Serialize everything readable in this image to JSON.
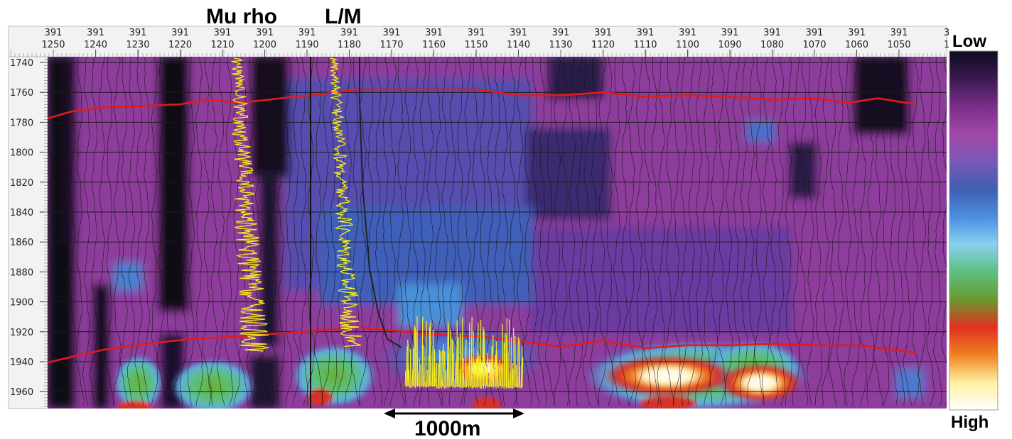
{
  "chart_data": {
    "type": "heatmap",
    "title": "",
    "top_axis": {
      "line1": "391",
      "ticks": [
        "1250",
        "1240",
        "1230",
        "1220",
        "1210",
        "1200",
        "1190",
        "1180",
        "1170",
        "1160",
        "1150",
        "1140",
        "1130",
        "1120",
        "1110",
        "1100",
        "1090",
        "1080",
        "1070",
        "1060",
        "1050"
      ],
      "edge_tick": "1"
    },
    "left_axis": {
      "ticks": [
        "1740",
        "1760",
        "1780",
        "1800",
        "1820",
        "1840",
        "1860",
        "1880",
        "1900",
        "1920",
        "1940",
        "1960"
      ],
      "range": [
        1738,
        1972
      ]
    },
    "colorbar": {
      "low_label": "Low",
      "high_label": "High",
      "stops": [
        "#0f0a1f",
        "#3a1a4f",
        "#7a2e8a",
        "#a048a8",
        "#7a58b8",
        "#3f5fb0",
        "#4a8ee0",
        "#8ad0f0",
        "#5cc080",
        "#6a9a30",
        "#e03020",
        "#f08020",
        "#fff0a0",
        "#ffffff"
      ]
    },
    "well_labels": [
      "Mu rho",
      "L/M"
    ],
    "scale_bar_label": "1000m",
    "horizons": [
      {
        "name": "upper",
        "color": "#e01b1b",
        "trace": [
          [
            1252,
            1778
          ],
          [
            1246,
            1773
          ],
          [
            1238,
            1770
          ],
          [
            1228,
            1769
          ],
          [
            1220,
            1768
          ],
          [
            1214,
            1765
          ],
          [
            1206,
            1767
          ],
          [
            1196,
            1764
          ],
          [
            1186,
            1761
          ],
          [
            1178,
            1758
          ],
          [
            1170,
            1758
          ],
          [
            1160,
            1758
          ],
          [
            1150,
            1758
          ],
          [
            1140,
            1762
          ],
          [
            1130,
            1762
          ],
          [
            1120,
            1760
          ],
          [
            1110,
            1763
          ],
          [
            1100,
            1762
          ],
          [
            1090,
            1763
          ],
          [
            1080,
            1765
          ],
          [
            1070,
            1764
          ],
          [
            1062,
            1767
          ],
          [
            1055,
            1764
          ],
          [
            1046,
            1768
          ]
        ]
      },
      {
        "name": "lower",
        "color": "#e01b1b",
        "trace": [
          [
            1252,
            1941
          ],
          [
            1246,
            1937
          ],
          [
            1238,
            1932
          ],
          [
            1228,
            1928
          ],
          [
            1218,
            1925
          ],
          [
            1206,
            1923
          ],
          [
            1196,
            1921
          ],
          [
            1186,
            1919
          ],
          [
            1178,
            1917
          ],
          [
            1170,
            1919
          ],
          [
            1160,
            1922
          ],
          [
            1150,
            1923
          ],
          [
            1140,
            1926
          ],
          [
            1130,
            1930
          ],
          [
            1120,
            1926
          ],
          [
            1110,
            1931
          ],
          [
            1100,
            1929
          ],
          [
            1090,
            1929
          ],
          [
            1080,
            1928
          ],
          [
            1070,
            1929
          ],
          [
            1060,
            1929
          ],
          [
            1046,
            1934
          ]
        ]
      }
    ],
    "anomalies": [
      {
        "x": 1155,
        "y": 1948,
        "label": "bright-white-core-1"
      },
      {
        "x": 1105,
        "y": 1952,
        "label": "bright-white-core-2"
      },
      {
        "x": 1082,
        "y": 1955,
        "label": "bright-white-core-3"
      }
    ]
  }
}
